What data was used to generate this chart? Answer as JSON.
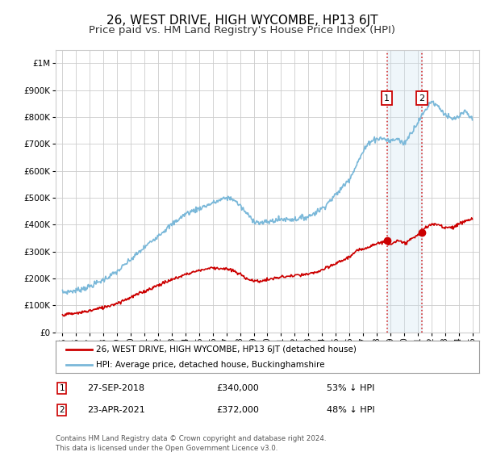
{
  "title": "26, WEST DRIVE, HIGH WYCOMBE, HP13 6JT",
  "subtitle": "Price paid vs. HM Land Registry's House Price Index (HPI)",
  "hpi_label": "HPI: Average price, detached house, Buckinghamshire",
  "price_label": "26, WEST DRIVE, HIGH WYCOMBE, HP13 6JT (detached house)",
  "legend_note": "Contains HM Land Registry data © Crown copyright and database right 2024.\nThis data is licensed under the Open Government Licence v3.0.",
  "sale1_date": "27-SEP-2018",
  "sale1_price": 340000,
  "sale1_pct": "53% ↓ HPI",
  "sale2_date": "23-APR-2021",
  "sale2_price": 372000,
  "sale2_pct": "48% ↓ HPI",
  "sale1_x": 2018.75,
  "sale2_x": 2021.31,
  "ylim": [
    0,
    1050000
  ],
  "xlim": [
    1994.5,
    2025.5
  ],
  "hpi_color": "#7ab8d9",
  "price_color": "#cc0000",
  "vline_color": "#cc0000",
  "shade_color": "#cde4f0",
  "background_color": "#ffffff",
  "grid_color": "#cccccc",
  "title_fontsize": 11,
  "subtitle_fontsize": 9.5
}
